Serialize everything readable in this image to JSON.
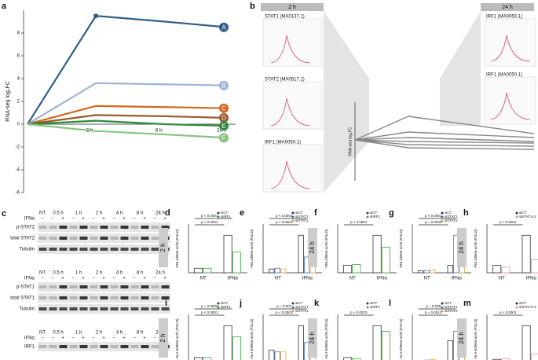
{
  "panel_labels": [
    "a",
    "b",
    "c"
  ],
  "motifs": {
    "headers": [
      "2 h",
      "24 h"
    ],
    "left": [
      "STAT1 (MA0137.1)",
      "STAT2 (MA0517.1)",
      "IRF1 (MA0050.1)"
    ],
    "right": [
      "IRF1 (MA0050.1)",
      "IRF1 (MA0050.1)"
    ],
    "ylabel": "RNA-seq log₂FC"
  },
  "blots": {
    "timepoints": [
      "NT",
      "0.5 h",
      "1 h",
      "2 h",
      "4 h",
      "8 h",
      "24 h"
    ],
    "treatment": "IFNα",
    "signs": [
      "−",
      "+"
    ],
    "blocks": [
      {
        "rows": [
          "p-STAT2",
          "total STAT2",
          "Tubulin"
        ]
      },
      {
        "rows": [
          "p-STAT1",
          "total STAT1",
          "Tubulin"
        ]
      },
      {
        "rows": [
          "IRF1"
        ]
      }
    ]
  },
  "chart_data": [
    {
      "type": "line",
      "panel": "a",
      "ylabel": "RNA-seq log₂FC",
      "categories": [
        null,
        "2 h",
        "8 h",
        "24 h"
      ],
      "ylim": [
        -6,
        10
      ],
      "yticks": [
        -6,
        -4,
        -2,
        0,
        2,
        4,
        6,
        8
      ],
      "series": [
        {
          "name": "A",
          "color": "#2e5f8c",
          "values": [
            0,
            9.5,
            9.0,
            8.5
          ]
        },
        {
          "name": "B",
          "color": "#9fb3d6",
          "values": [
            0,
            3.6,
            3.5,
            3.4
          ]
        },
        {
          "name": "C",
          "color": "#d2691e",
          "values": [
            0,
            1.6,
            1.5,
            1.4
          ]
        },
        {
          "name": "D",
          "color": "#9a5a2e",
          "values": [
            0,
            0.8,
            0.7,
            0.55
          ]
        },
        {
          "name": "E",
          "color": "#2e8b3e",
          "values": [
            0,
            0.3,
            0,
            -0.15
          ]
        },
        {
          "name": "F",
          "color": "#86c47f",
          "values": [
            0,
            -0.6,
            -0.9,
            -1.2
          ]
        }
      ]
    },
    {
      "type": "bar",
      "panel": "d",
      "time": "2 h",
      "ylabel": "PDL1/Beta-actin (FOLD)",
      "categories": [
        "NT",
        "IFNα"
      ],
      "ylim": [
        0,
        1.3
      ],
      "annotations": [
        "p < 0.0001",
        "p < 0.0001"
      ],
      "series": [
        {
          "name": "siCT",
          "color": "#333333",
          "values": [
            0.12,
            1.0
          ]
        },
        {
          "name": "siIRF1",
          "color": "#3aaa35",
          "values": [
            0.12,
            0.55
          ]
        }
      ]
    },
    {
      "type": "bar",
      "panel": "e",
      "ylabel": "PDL1/Beta-actin (FOLD)",
      "categories": [
        "NT",
        "IFNα"
      ],
      "ylim": [
        0,
        1.3
      ],
      "annotations": [
        "p < 0.0001",
        "p < 0.0001"
      ],
      "series": [
        {
          "name": "siCT",
          "color": "#333333",
          "values": [
            0.1,
            1.0
          ]
        },
        {
          "name": "siSTAT1",
          "color": "#4a6fd1",
          "values": [
            0.12,
            0.42
          ]
        },
        {
          "name": "siSTAT2",
          "color": "#f0a030",
          "values": [
            0.1,
            0.45
          ]
        }
      ]
    },
    {
      "type": "bar",
      "panel": "f",
      "time": "24 h",
      "ylabel": "PDL1/Beta-actin (FOLD)",
      "categories": [
        "NT",
        "IFNα"
      ],
      "ylim": [
        0,
        1.3
      ],
      "annotations": [
        "p < 0.0001"
      ],
      "series": [
        {
          "name": "siCT",
          "color": "#333333",
          "values": [
            0.2,
            1.0
          ]
        },
        {
          "name": "siIRF1",
          "color": "#3aaa35",
          "values": [
            0.22,
            0.68
          ]
        }
      ]
    },
    {
      "type": "bar",
      "panel": "g",
      "ylabel": "PDL1/Beta-actin (FOLD)",
      "categories": [
        "NT",
        "IFNα"
      ],
      "ylim": [
        0,
        1.3
      ],
      "annotations": [
        "p = 0.0009",
        "p < 0.0001"
      ],
      "series": [
        {
          "name": "siCT",
          "color": "#333333",
          "values": [
            0.05,
            0.2
          ]
        },
        {
          "name": "siSTAT1",
          "color": "#4a6fd1",
          "values": [
            0.06,
            1.0
          ]
        },
        {
          "name": "siSTAT2",
          "color": "#f0a030",
          "values": [
            0.07,
            0.8
          ]
        }
      ]
    },
    {
      "type": "bar",
      "panel": "h",
      "time": "24 h",
      "ylabel": "PDL1/Beta-actin (FOLD)",
      "categories": [
        "NT",
        "IFNα"
      ],
      "ylim": [
        0,
        1.3
      ],
      "annotations": [
        "p < 0.0001"
      ],
      "series": [
        {
          "name": "siCT",
          "color": "#333333",
          "values": [
            0.2,
            1.0
          ]
        },
        {
          "name": "siSTAT1+2",
          "color": "#e8908f",
          "values": [
            0.15,
            0.35
          ]
        }
      ]
    },
    {
      "type": "bar",
      "panel": "i",
      "time": "2 h",
      "ylabel": "HLA-E/Beta-actin (FOLD)",
      "categories": [
        "NT",
        "IFNα"
      ],
      "ylim": [
        0,
        1.3
      ],
      "annotations": [
        "p < 0.0001",
        "p = 0.0009"
      ],
      "series": [
        {
          "name": "siCT",
          "color": "#333333",
          "values": [
            0.15,
            1.0
          ]
        },
        {
          "name": "siIRF1",
          "color": "#3aaa35",
          "values": [
            0.15,
            0.7
          ]
        }
      ]
    },
    {
      "type": "bar",
      "panel": "j",
      "ylabel": "HLA-E/Beta-actin (FOLD)",
      "categories": [
        "NT",
        "IFNα"
      ],
      "ylim": [
        0,
        1.3
      ],
      "annotations": [
        "p < 0.0001",
        "p = 0.007"
      ],
      "series": [
        {
          "name": "siCT",
          "color": "#333333",
          "values": [
            0.35,
            1.0
          ]
        },
        {
          "name": "siSTAT1",
          "color": "#4a6fd1",
          "values": [
            0.3,
            0.55
          ]
        },
        {
          "name": "siSTAT2",
          "color": "#f0a030",
          "values": [
            0.3,
            0.5
          ]
        }
      ]
    },
    {
      "type": "bar",
      "panel": "k",
      "time": "24 h",
      "ylabel": "HLA-E/Beta-actin (FOLD)",
      "categories": [
        "NT",
        "IFNα"
      ],
      "ylim": [
        0,
        1.3
      ],
      "annotations": [
        "p = 0.0023"
      ],
      "series": [
        {
          "name": "siCT",
          "color": "#333333",
          "values": [
            0.15,
            1.0
          ]
        },
        {
          "name": "siIRF1",
          "color": "#3aaa35",
          "values": [
            0.12,
            0.85
          ]
        }
      ]
    },
    {
      "type": "bar",
      "panel": "l",
      "ylabel": "HLA-E/Beta-actin (FOLD)",
      "categories": [
        "NT",
        "IFNα"
      ],
      "ylim": [
        0,
        1.3
      ],
      "annotations": [
        "p = 0.0012",
        "p = 0.039"
      ],
      "series": [
        {
          "name": "siCT",
          "color": "#333333",
          "values": [
            0.05,
            0.6
          ]
        },
        {
          "name": "siSTAT1",
          "color": "#4a6fd1",
          "values": [
            0.08,
            0.85
          ]
        },
        {
          "name": "siSTAT2",
          "color": "#f0a030",
          "values": [
            0.1,
            0.85
          ]
        }
      ]
    },
    {
      "type": "bar",
      "panel": "m",
      "time": "24 h",
      "ylabel": "HLA-E/Beta-actin (FOLD)",
      "categories": [
        "NT",
        "IFNα"
      ],
      "ylim": [
        0,
        1.3
      ],
      "annotations": [
        "p < 0.0001"
      ],
      "series": [
        {
          "name": "siCT",
          "color": "#333333",
          "values": [
            0.1,
            1.0
          ]
        },
        {
          "name": "siSTAT1+2",
          "color": "#e8908f",
          "values": [
            0.12,
            0.25
          ]
        }
      ]
    }
  ]
}
